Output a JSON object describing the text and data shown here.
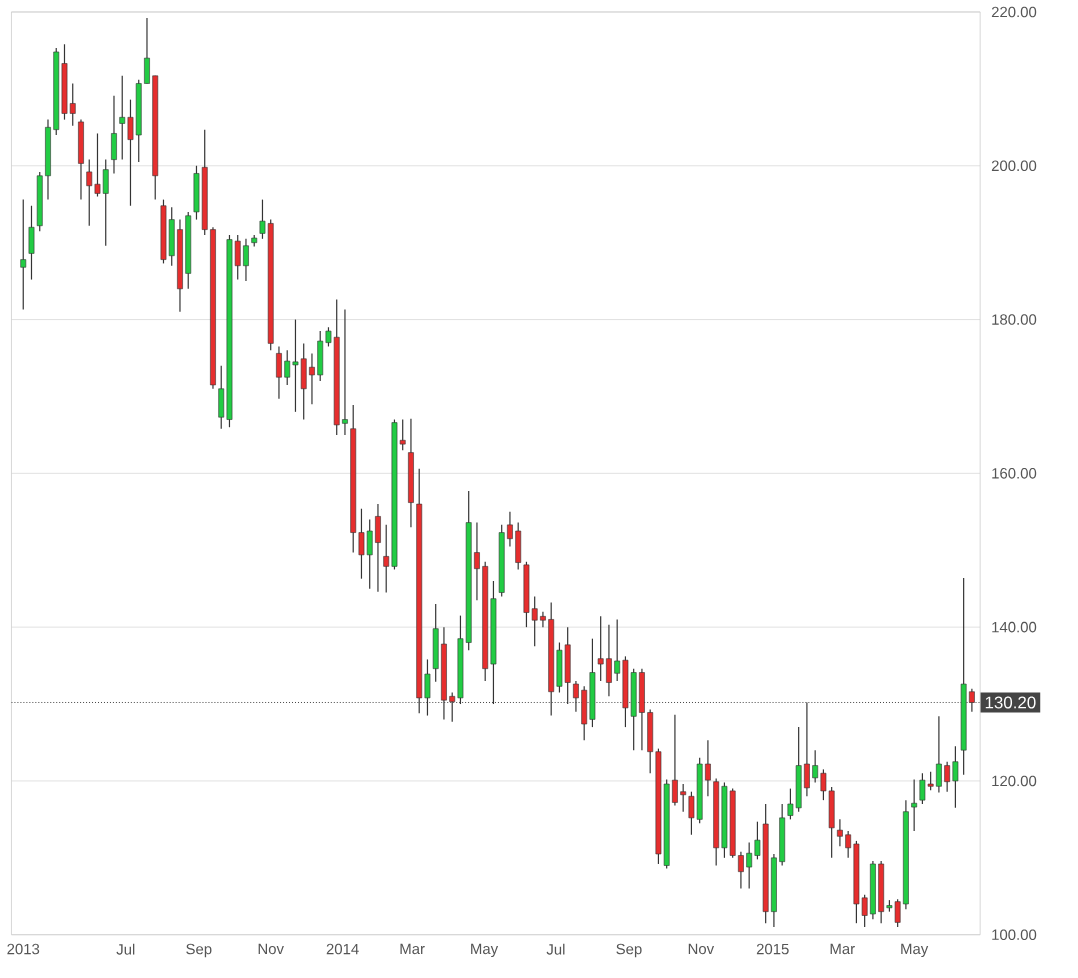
{
  "chart_data": {
    "type": "candlestick",
    "colors": [
      "#22cc44",
      "#22cc44",
      "#22cc44",
      "#22cc44",
      "#22cc44",
      "#e62e2e",
      "#e62e2e",
      "#e62e2e",
      "#e62e2e",
      "#e62e2e",
      "#22cc44",
      "#22cc44",
      "#22cc44",
      "#e62e2e",
      "#22cc44",
      "#22cc44",
      "#e62e2e",
      "#e62e2e",
      "#22cc44",
      "#e62e2e",
      "#22cc44",
      "#22cc44",
      "#e62e2e",
      "#e62e2e",
      "#22cc44",
      "#22cc44",
      "#e62e2e",
      "#22cc44",
      "#22cc44",
      "#22cc44",
      "#e62e2e",
      "#e62e2e",
      "#22cc44",
      "#22cc44",
      "#e62e2e",
      "#e62e2e",
      "#22cc44",
      "#22cc44",
      "#e62e2e",
      "#22cc44",
      "#e62e2e",
      "#e62e2e",
      "#22cc44",
      "#e62e2e",
      "#e62e2e",
      "#22cc44",
      "#e62e2e",
      "#e62e2e",
      "#e62e2e",
      "#22cc44",
      "#22cc44",
      "#e62e2e",
      "#e62e2e",
      "#22cc44",
      "#22cc44",
      "#e62e2e",
      "#e62e2e",
      "#22cc44",
      "#22cc44",
      "#e62e2e",
      "#e62e2e",
      "#e62e2e",
      "#e62e2e",
      "#e62e2e",
      "#e62e2e",
      "#22cc44",
      "#e62e2e",
      "#e62e2e",
      "#e62e2e",
      "#22cc44",
      "#e62e2e",
      "#e62e2e",
      "#22cc44",
      "#e62e2e",
      "#22cc44",
      "#e62e2e",
      "#e62e2e",
      "#e62e2e",
      "#22cc44",
      "#e62e2e",
      "#e62e2e",
      "#e62e2e",
      "#22cc44",
      "#e62e2e",
      "#e62e2e",
      "#22cc44",
      "#e62e2e",
      "#e62e2e",
      "#22cc44",
      "#22cc44",
      "#e62e2e",
      "#22cc44",
      "#22cc44",
      "#22cc44",
      "#22cc44",
      "#e62e2e",
      "#22cc44",
      "#e62e2e",
      "#e62e2e",
      "#e62e2e",
      "#e62e2e",
      "#e62e2e",
      "#e62e2e",
      "#22cc44",
      "#e62e2e",
      "#22cc44",
      "#e62e2e",
      "#22cc44",
      "#22cc44",
      "#22cc44",
      "#e62e2e",
      "#22cc44",
      "#e62e2e",
      "#22cc44",
      "#22cc44",
      "#e62e2e"
    ],
    "x": [
      "2013-04-05",
      "2013-04-12",
      "2013-04-19",
      "2013-04-26",
      "2013-05-03",
      "2013-05-10",
      "2013-05-17",
      "2013-05-24",
      "2013-05-31",
      "2013-06-07",
      "2013-06-14",
      "2013-06-21",
      "2013-06-28",
      "2013-07-05",
      "2013-07-12",
      "2013-07-19",
      "2013-07-26",
      "2013-08-02",
      "2013-08-09",
      "2013-08-16",
      "2013-08-23",
      "2013-08-30",
      "2013-09-06",
      "2013-09-13",
      "2013-09-20",
      "2013-09-27",
      "2013-10-04",
      "2013-10-11",
      "2013-10-18",
      "2013-10-25",
      "2013-11-01",
      "2013-11-08",
      "2013-11-15",
      "2013-11-22",
      "2013-11-29",
      "2013-12-06",
      "2013-12-13",
      "2013-12-20",
      "2013-12-27",
      "2014-01-03",
      "2014-01-10",
      "2014-01-17",
      "2014-01-24",
      "2014-01-31",
      "2014-02-07",
      "2014-02-14",
      "2014-02-21",
      "2014-02-28",
      "2014-03-07",
      "2014-03-14",
      "2014-03-21",
      "2014-03-28",
      "2014-04-04",
      "2014-04-11",
      "2014-04-18",
      "2014-04-25",
      "2014-05-02",
      "2014-05-09",
      "2014-05-16",
      "2014-05-23",
      "2014-05-30",
      "2014-06-06",
      "2014-06-13",
      "2014-06-20",
      "2014-06-27",
      "2014-07-04",
      "2014-07-11",
      "2014-07-18",
      "2014-07-25",
      "2014-08-01",
      "2014-08-08",
      "2014-08-15",
      "2014-08-22",
      "2014-08-29",
      "2014-09-05",
      "2014-09-12",
      "2014-09-19",
      "2014-09-26",
      "2014-10-03",
      "2014-10-10",
      "2014-10-17",
      "2014-10-24",
      "2014-10-31",
      "2014-11-07",
      "2014-11-14",
      "2014-11-21",
      "2014-11-28",
      "2014-12-05",
      "2014-12-12",
      "2014-12-19",
      "2014-12-26",
      "2015-01-02",
      "2015-01-09",
      "2015-01-16",
      "2015-01-23",
      "2015-01-30",
      "2015-02-06",
      "2015-02-13",
      "2015-02-20",
      "2015-02-27",
      "2015-03-06",
      "2015-03-13",
      "2015-03-20",
      "2015-03-27",
      "2015-04-03",
      "2015-04-10",
      "2015-04-17",
      "2015-04-24",
      "2015-05-01",
      "2015-05-08",
      "2015-05-15",
      "2015-05-22",
      "2015-05-29",
      "2015-06-05",
      "2015-06-12",
      "2015-06-19"
    ],
    "ohlc": [
      [
        186.8,
        195.6,
        181.3,
        187.8
      ],
      [
        188.6,
        194.8,
        185.2,
        192
      ],
      [
        192.2,
        199.2,
        191.5,
        198.7
      ],
      [
        198.7,
        206,
        195.6,
        205
      ],
      [
        204.7,
        215.3,
        204,
        214.8
      ],
      [
        213.3,
        215.8,
        206,
        206.8
      ],
      [
        208.1,
        210.7,
        205.2,
        206.8
      ],
      [
        205.7,
        206,
        195.6,
        200.3
      ],
      [
        199.2,
        200.8,
        192.2,
        197.4
      ],
      [
        197.6,
        204.2,
        196,
        196.4
      ],
      [
        196.4,
        200.8,
        189.6,
        199.5
      ],
      [
        200.8,
        209.1,
        199,
        204.2
      ],
      [
        205.5,
        211.7,
        200.8,
        206.3
      ],
      [
        206.3,
        208.6,
        194.8,
        203.4
      ],
      [
        204,
        211.2,
        200.5,
        210.7
      ],
      [
        210.7,
        219.2,
        210.7,
        214
      ],
      [
        211.7,
        211.7,
        195.6,
        198.7
      ],
      [
        194.8,
        195.6,
        187.3,
        187.8
      ],
      [
        188.3,
        194.6,
        187,
        193
      ],
      [
        191.7,
        193,
        181,
        184
      ],
      [
        186,
        194,
        184,
        193.5
      ],
      [
        194,
        200,
        193,
        199
      ],
      [
        199.8,
        204.7,
        191,
        191.7
      ],
      [
        191.7,
        192,
        171,
        171.5
      ],
      [
        167.3,
        174,
        165.8,
        171
      ],
      [
        167,
        191,
        166,
        190.4
      ],
      [
        190.2,
        191,
        185.2,
        187
      ],
      [
        187,
        190.5,
        185,
        189.6
      ],
      [
        190,
        191,
        189.5,
        190.6
      ],
      [
        191.2,
        195.6,
        190.5,
        192.8
      ],
      [
        192.5,
        193,
        176,
        176.9
      ],
      [
        175.6,
        176.5,
        169.7,
        172.5
      ],
      [
        172.5,
        176,
        171.5,
        174.6
      ],
      [
        174.1,
        180,
        168,
        174.5
      ],
      [
        174.9,
        176.9,
        167,
        171
      ],
      [
        173.8,
        175.6,
        169,
        172.8
      ],
      [
        172.8,
        178.5,
        172,
        177.2
      ],
      [
        177,
        179,
        176.5,
        178.5
      ],
      [
        177.7,
        182.6,
        165,
        166.3
      ],
      [
        166.5,
        181.3,
        165,
        167
      ],
      [
        165.8,
        168.9,
        149.7,
        152.3
      ],
      [
        152.3,
        155.4,
        146.3,
        149.4
      ],
      [
        149.4,
        154,
        145,
        152.5
      ],
      [
        154.4,
        156,
        144.6,
        151
      ],
      [
        149.2,
        153.3,
        144.5,
        147.9
      ],
      [
        147.9,
        167,
        147.5,
        166.6
      ],
      [
        164.3,
        167,
        163,
        163.8
      ],
      [
        162.7,
        167.1,
        153,
        156.2
      ],
      [
        156,
        160.6,
        128.8,
        130.8
      ],
      [
        130.8,
        135.8,
        128.5,
        133.9
      ],
      [
        134.6,
        143,
        132.9,
        139.8
      ],
      [
        137.8,
        140,
        128,
        130.5
      ],
      [
        131,
        131.5,
        127.7,
        130.3
      ],
      [
        130.8,
        141.5,
        130,
        138.5
      ],
      [
        138,
        157.7,
        137,
        153.6
      ],
      [
        149.7,
        153.6,
        143.5,
        147.6
      ],
      [
        147.9,
        148.5,
        133,
        134.6
      ],
      [
        135.2,
        146,
        130,
        143.7
      ],
      [
        144.5,
        153.3,
        144,
        152.3
      ],
      [
        153.3,
        155,
        150.5,
        151.5
      ],
      [
        152.5,
        153.6,
        147.5,
        148.4
      ],
      [
        148.1,
        148.5,
        140,
        141.9
      ],
      [
        142.4,
        144,
        137.5,
        140.9
      ],
      [
        141.4,
        142,
        140,
        140.9
      ],
      [
        141,
        143.2,
        128.5,
        131.6
      ],
      [
        132.3,
        138,
        131.5,
        137
      ],
      [
        137.7,
        140,
        130,
        132.8
      ],
      [
        132.6,
        133,
        129,
        130.8
      ],
      [
        131.8,
        132.3,
        125.3,
        127.4
      ],
      [
        128,
        138.5,
        127,
        134.1
      ],
      [
        135.9,
        141.4,
        133,
        135.2
      ],
      [
        135.9,
        140.3,
        131,
        132.8
      ],
      [
        134,
        141,
        133,
        135.6
      ],
      [
        135.7,
        136.2,
        127,
        129.5
      ],
      [
        128.4,
        134.6,
        124,
        134.1
      ],
      [
        134.1,
        134.6,
        124,
        128.9
      ],
      [
        128.9,
        129.3,
        121,
        123.8
      ],
      [
        123.8,
        124.2,
        109.2,
        110.5
      ],
      [
        109,
        120.2,
        108.6,
        119.6
      ],
      [
        120.1,
        128.6,
        116.8,
        117.2
      ],
      [
        118.6,
        119.6,
        116,
        118.2
      ],
      [
        118,
        118.6,
        113,
        115.2
      ],
      [
        115,
        123,
        114.5,
        122.2
      ],
      [
        122.2,
        125.3,
        118,
        120.1
      ],
      [
        119.9,
        120.3,
        109,
        111.3
      ],
      [
        111.3,
        119.8,
        110,
        119.3
      ],
      [
        118.7,
        119,
        110,
        110.3
      ],
      [
        110.3,
        110.8,
        106,
        108.2
      ],
      [
        108.8,
        112,
        106,
        110.6
      ],
      [
        110.3,
        114.7,
        109.8,
        112.3
      ],
      [
        114.4,
        117,
        101.5,
        103
      ],
      [
        103,
        110.5,
        101,
        110
      ],
      [
        109.5,
        117,
        109,
        115.2
      ],
      [
        115.5,
        119,
        115,
        117
      ],
      [
        116.5,
        127,
        116,
        122
      ],
      [
        122.2,
        130.2,
        118,
        119.1
      ],
      [
        120.4,
        124,
        119.8,
        122
      ],
      [
        121,
        121.5,
        117.5,
        118.7
      ],
      [
        118.7,
        119.2,
        110,
        113.9
      ],
      [
        113.6,
        115,
        111.5,
        112.8
      ],
      [
        113,
        113.5,
        110,
        111.3
      ],
      [
        111.8,
        112.2,
        101.5,
        104
      ],
      [
        104.8,
        105.2,
        101,
        102.5
      ],
      [
        102.7,
        109.6,
        102,
        109.2
      ],
      [
        109.2,
        109.6,
        101.5,
        103
      ],
      [
        103.5,
        104.5,
        103,
        103.8
      ],
      [
        104.3,
        104.6,
        101,
        101.6
      ],
      [
        104,
        117.5,
        103.3,
        116
      ],
      [
        116.6,
        120.2,
        113.5,
        117.1
      ],
      [
        117.5,
        121,
        117,
        120.1
      ],
      [
        119.6,
        121.2,
        118.8,
        119.3
      ],
      [
        119.3,
        128.4,
        118.5,
        122.2
      ],
      [
        122,
        122.5,
        118.6,
        119.9
      ],
      [
        120,
        124.5,
        116.5,
        122.5
      ],
      [
        124,
        146.4,
        120.8,
        132.6
      ],
      [
        131.6,
        132,
        129,
        130.2
      ]
    ],
    "xlim": [
      "2013-03-26",
      "2015-06-26"
    ],
    "xticks": [
      {
        "value": "2013-04-05",
        "label": "2013"
      },
      {
        "value": "2013-07-01",
        "label": "Jul"
      },
      {
        "value": "2013-09-01",
        "label": "Sep"
      },
      {
        "value": "2013-11-01",
        "label": "Nov"
      },
      {
        "value": "2014-01-01",
        "label": "2014"
      },
      {
        "value": "2014-03-01",
        "label": "Mar"
      },
      {
        "value": "2014-05-01",
        "label": "May"
      },
      {
        "value": "2014-07-01",
        "label": "Jul"
      },
      {
        "value": "2014-09-01",
        "label": "Sep"
      },
      {
        "value": "2014-11-01",
        "label": "Nov"
      },
      {
        "value": "2015-01-01",
        "label": "2015"
      },
      {
        "value": "2015-03-01",
        "label": "Mar"
      },
      {
        "value": "2015-05-01",
        "label": "May"
      }
    ],
    "ylim": [
      100,
      220
    ],
    "yticks": [
      {
        "value": 100,
        "label": "100.00"
      },
      {
        "value": 120,
        "label": "120.00"
      },
      {
        "value": 140,
        "label": "140.00"
      },
      {
        "value": 160,
        "label": "160.00"
      },
      {
        "value": 180,
        "label": "180.00"
      },
      {
        "value": 200,
        "label": "200.00"
      },
      {
        "value": 220,
        "label": "220.00"
      }
    ],
    "ref_lines": [
      {
        "axis": "y",
        "value": 130.2,
        "label": "130.20",
        "color": "#444444",
        "line_style": "dotted"
      }
    ],
    "grid": "y"
  }
}
